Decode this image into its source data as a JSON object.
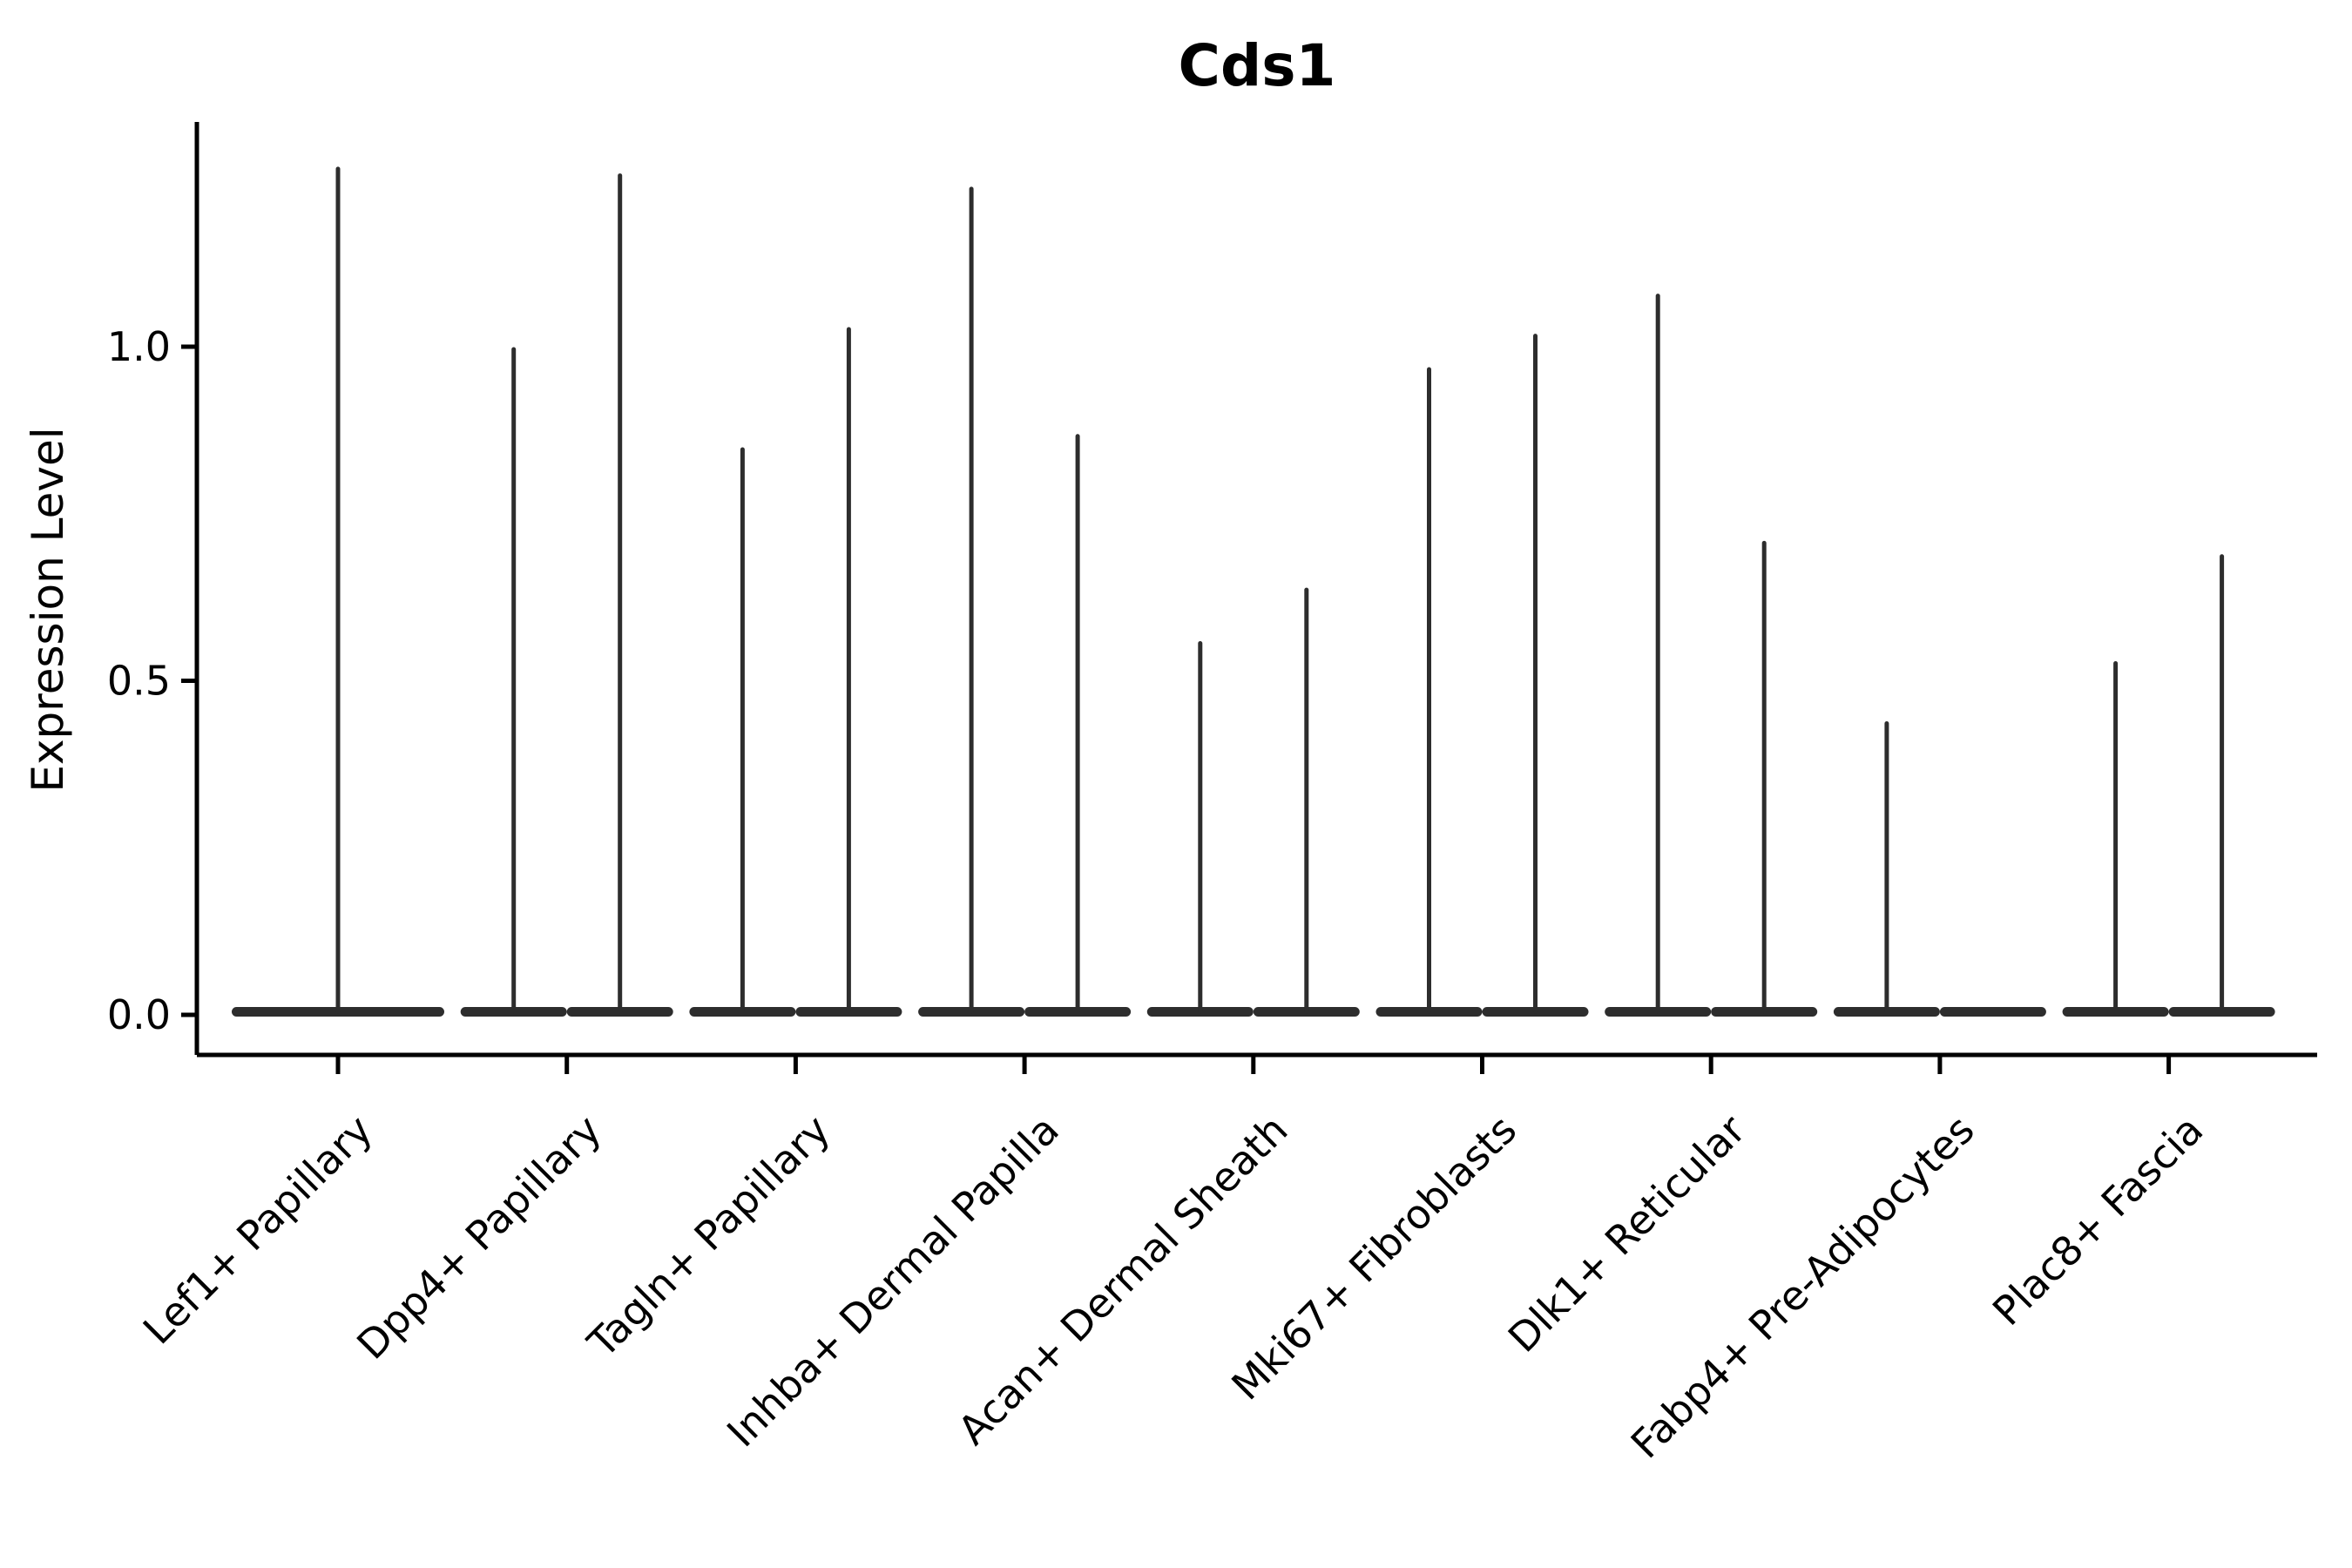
{
  "figure": {
    "title": "Cds1",
    "background_color": "#ffffff",
    "axis_color": "#000000",
    "violin_color": "#2d2d2d"
  },
  "chart_data": {
    "type": "violin",
    "title": "Cds1",
    "xlabel": "",
    "ylabel": "Expression Level",
    "ylim": [
      -0.06,
      1.34
    ],
    "yticks": [
      0.0,
      0.5,
      1.0
    ],
    "ytick_labels": [
      "0.0",
      "0.5",
      "1.0"
    ],
    "grid": false,
    "legend_position": "none",
    "xtick_label_rotation_deg": 45,
    "categories": [
      "Lef1+ Papillary",
      "Dpp4+ Papillary",
      "Tagln+ Papillary",
      "Inhba+ Dermal Papilla",
      "Acan+ Dermal Sheath",
      "Mki67+ Fibroblasts",
      "Dlk1+ Reticular",
      "Fabp4+ Pre-Adipocytes",
      "Plac8+ Fascia"
    ],
    "description": "Flat violins concentrated at 0 expression with thin tails reaching the per-violin maximum; most categories contain two side-by-side violins.",
    "series": [
      {
        "category": "Lef1+ Papillary",
        "violins": [
          {
            "position": "full",
            "min": 0,
            "max": 1.27
          }
        ]
      },
      {
        "category": "Dpp4+ Papillary",
        "violins": [
          {
            "position": "left",
            "min": 0,
            "max": 1.0
          },
          {
            "position": "right",
            "min": 0,
            "max": 1.26
          }
        ]
      },
      {
        "category": "Tagln+ Papillary",
        "violins": [
          {
            "position": "left",
            "min": 0,
            "max": 0.85
          },
          {
            "position": "right",
            "min": 0,
            "max": 1.03
          }
        ]
      },
      {
        "category": "Inhba+ Dermal Papilla",
        "violins": [
          {
            "position": "left",
            "min": 0,
            "max": 1.24
          },
          {
            "position": "right",
            "min": 0,
            "max": 0.87
          }
        ]
      },
      {
        "category": "Acan+ Dermal Sheath",
        "violins": [
          {
            "position": "left",
            "min": 0,
            "max": 0.56
          },
          {
            "position": "right",
            "min": 0,
            "max": 0.64
          }
        ]
      },
      {
        "category": "Mki67+ Fibroblasts",
        "violins": [
          {
            "position": "left",
            "min": 0,
            "max": 0.97
          },
          {
            "position": "right",
            "min": 0,
            "max": 1.02
          }
        ]
      },
      {
        "category": "Dlk1+ Reticular",
        "violins": [
          {
            "position": "left",
            "min": 0,
            "max": 1.08
          },
          {
            "position": "right",
            "min": 0,
            "max": 0.71
          }
        ]
      },
      {
        "category": "Fabp4+ Pre-Adipocytes",
        "violins": [
          {
            "position": "left",
            "min": 0,
            "max": 0.44
          },
          {
            "position": "right",
            "min": 0,
            "max": 0.0
          }
        ]
      },
      {
        "category": "Plac8+ Fascia",
        "violins": [
          {
            "position": "left",
            "min": 0,
            "max": 0.53
          },
          {
            "position": "right",
            "min": 0,
            "max": 0.69
          }
        ]
      }
    ]
  }
}
